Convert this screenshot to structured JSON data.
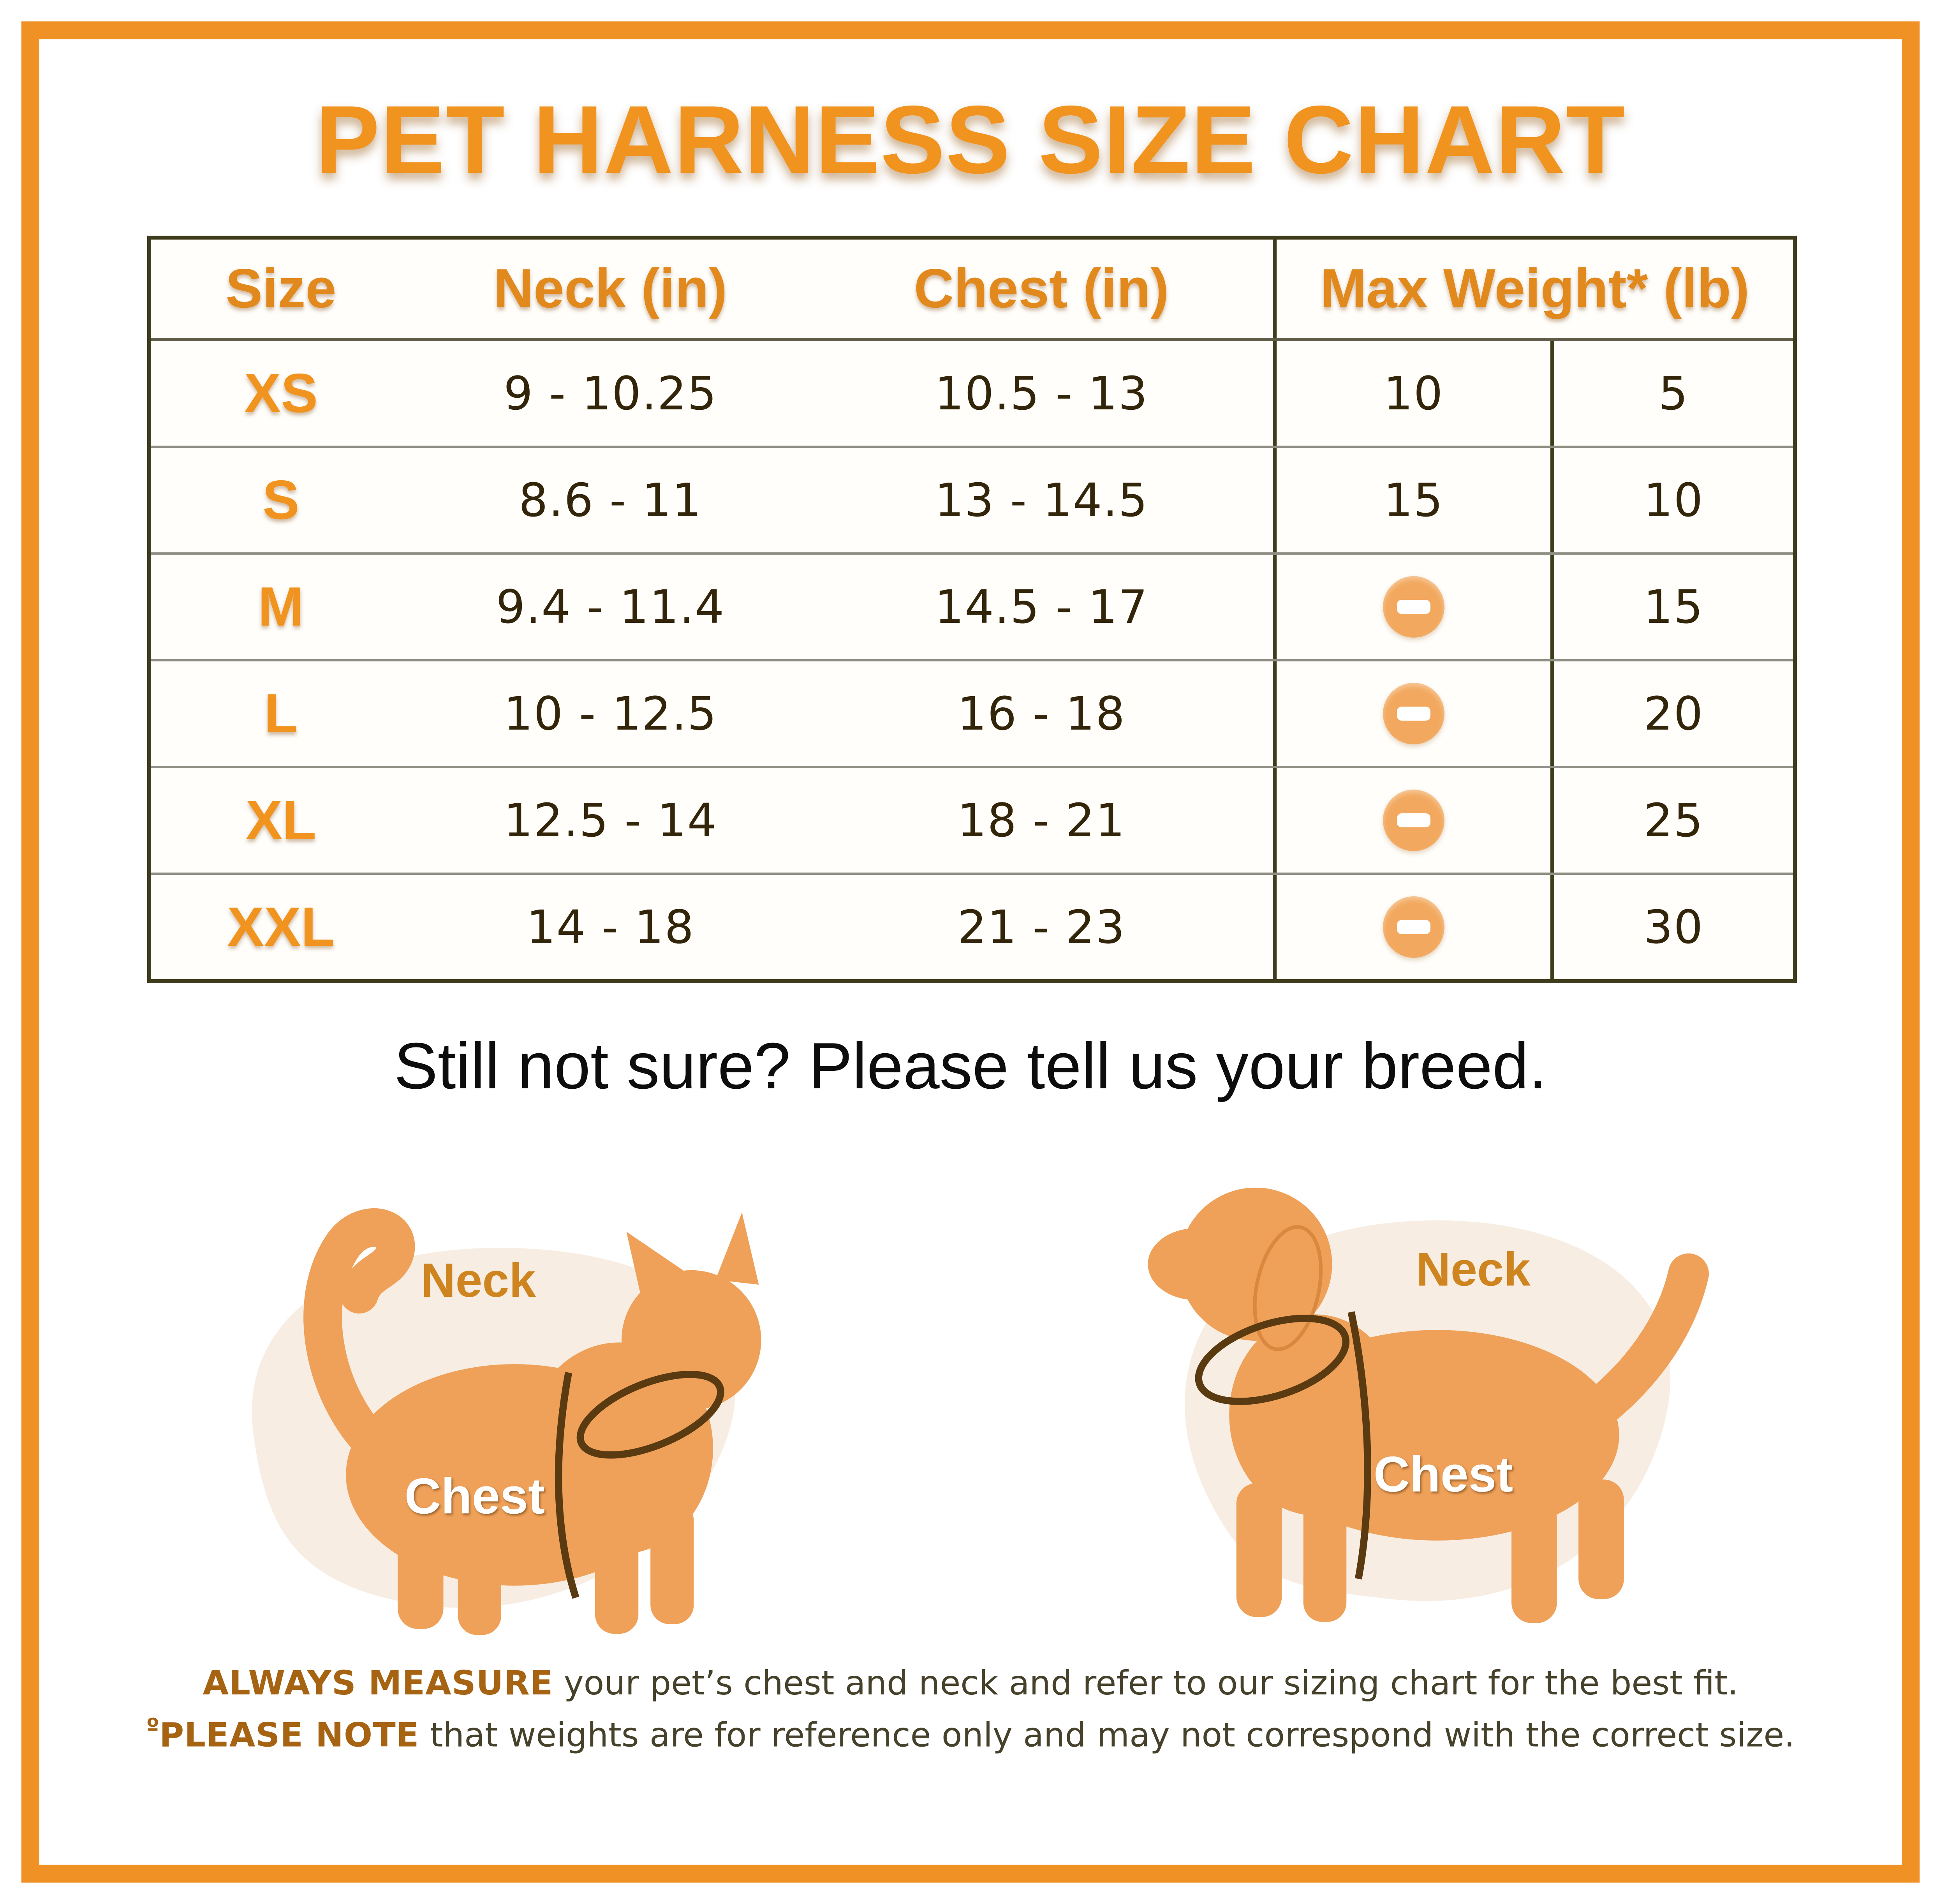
{
  "title": "PET HARNESS SIZE CHART",
  "colors": {
    "frame_orange": "#F09125",
    "accent_orange": "#F0941F",
    "table_border_olive": "#3F3C1E",
    "row_separator_gray": "#908F85",
    "number_brown": "#33250A",
    "animal_orange": "#EFA159",
    "blob_cream": "#F8EDE2",
    "minus_icon_fill": "#F2A95F",
    "footnote_bold_brown": "#A66312"
  },
  "table": {
    "headers": {
      "size": "Size",
      "neck": "Neck (in)",
      "chest": "Chest (in)",
      "max_weight": "Max Weight* (lb)"
    },
    "rows": [
      {
        "size": "XS",
        "neck": "9 - 10.25",
        "chest": "10.5 - 13",
        "weight_col1": "10",
        "weight_col2": "5"
      },
      {
        "size": "S",
        "neck": "8.6 - 11",
        "chest": "13 - 14.5",
        "weight_col1": "15",
        "weight_col2": "10"
      },
      {
        "size": "M",
        "neck": "9.4 - 11.4",
        "chest": "14.5 - 17",
        "weight_col1": null,
        "weight_col2": "15"
      },
      {
        "size": "L",
        "neck": "10 - 12.5",
        "chest": "16 - 18",
        "weight_col1": null,
        "weight_col2": "20"
      },
      {
        "size": "XL",
        "neck": "12.5 - 14",
        "chest": "18 - 21",
        "weight_col1": null,
        "weight_col2": "25"
      },
      {
        "size": "XXL",
        "neck": "14 - 18",
        "chest": "21 - 23",
        "weight_col1": null,
        "weight_col2": "30"
      }
    ],
    "minus_icon": "minus-icon"
  },
  "subtext": "Still not sure? Please tell us your breed.",
  "illustrations": {
    "cat": {
      "neck_label": "Neck",
      "chest_label": "Chest"
    },
    "dog": {
      "neck_label": "Neck",
      "chest_label": "Chest"
    }
  },
  "footer": {
    "line1_bold": "ALWAYS MEASURE",
    "line1_rest": " your pet’s chest and neck and refer to our sizing chart for the best fit.",
    "line2_marker": "º",
    "line2_bold": "PLEASE NOTE",
    "line2_rest": " that weights are for reference only and may not correspond with the correct size."
  }
}
